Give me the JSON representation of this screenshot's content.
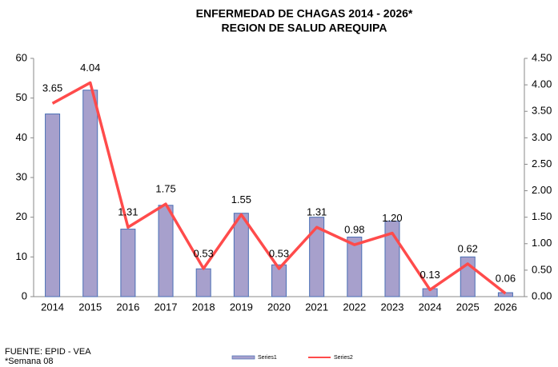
{
  "chart_data": {
    "type": "bar",
    "title": "ENFERMEDAD DE CHAGAS  2014 - 2026*",
    "subtitle": "REGION DE SALUD AREQUIPA",
    "categories": [
      "2014",
      "2015",
      "2016",
      "2017",
      "2018",
      "2019",
      "2020",
      "2021",
      "2022",
      "2023",
      "2024",
      "2025",
      "2026"
    ],
    "series": [
      {
        "name": "Series1",
        "type": "bar",
        "color": "#a7a0cc",
        "values": [
          46,
          52,
          17,
          23,
          7,
          21,
          8,
          20,
          15,
          19,
          2,
          10,
          1
        ]
      },
      {
        "name": "Series2",
        "type": "line",
        "axis": "y2",
        "color": "#ff4b4b",
        "values": [
          3.65,
          4.04,
          1.31,
          1.75,
          0.53,
          1.55,
          0.53,
          1.31,
          0.98,
          1.2,
          0.13,
          0.62,
          0.06
        ],
        "value_labels": [
          "3.65",
          "4.04",
          "1.31",
          "1.75",
          "0.53",
          "1.55",
          "0.53",
          "1.31",
          "0.98",
          "1.20",
          "0.13",
          "0.62",
          "0.06"
        ]
      }
    ],
    "ylim": [
      0,
      60
    ],
    "yticks": [
      0,
      10,
      20,
      30,
      40,
      50,
      60
    ],
    "y2lim": [
      0,
      4.5
    ],
    "y2ticks": [
      {
        "value": 0,
        "label": "0.00"
      },
      {
        "value": 0.5,
        "label": "0.50"
      },
      {
        "value": 1,
        "label": "1.00"
      },
      {
        "value": 1.5,
        "label": "1.50"
      },
      {
        "value": 2,
        "label": "2.00"
      },
      {
        "value": 2.5,
        "label": "2.50"
      },
      {
        "value": 3,
        "label": "3.00"
      },
      {
        "value": 3.5,
        "label": "3.50"
      },
      {
        "value": 4,
        "label": "4.00"
      },
      {
        "value": 4.5,
        "label": "4.50"
      }
    ],
    "legend": "bottom",
    "annotations": [
      "FUENTE: EPID - VEA",
      "*Semana   08"
    ]
  }
}
